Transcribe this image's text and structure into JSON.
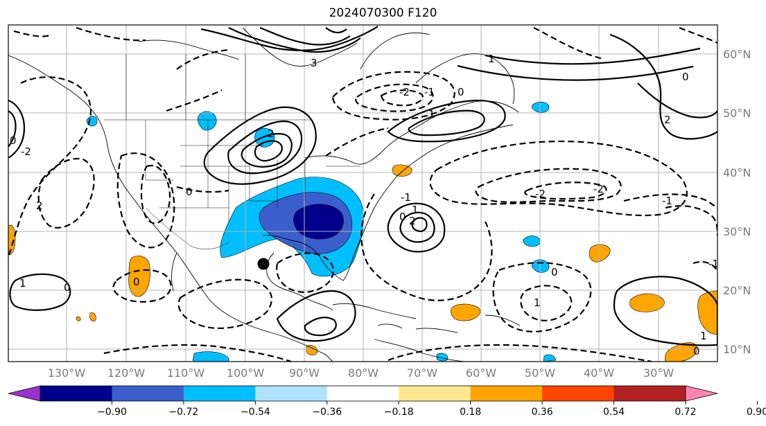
{
  "title": "2024070300 F120",
  "map": {
    "lat_labels": [
      "60°N",
      "50°N",
      "40°N",
      "30°N",
      "20°N",
      "10°N"
    ],
    "lon_labels": [
      "130°W",
      "120°W",
      "110°W",
      "100°W",
      "90°W",
      "80°W",
      "70°W",
      "60°W",
      "50°W",
      "40°W",
      "30°W"
    ],
    "contour_labels": [
      "3",
      "2",
      "1",
      "0",
      "-1",
      "-2",
      "2",
      "1",
      "0",
      "-1",
      "-2",
      "0",
      "1",
      "-1",
      "0",
      "2",
      "-2",
      "0",
      "1",
      "-1",
      "0",
      "1",
      "2",
      "0",
      "-2",
      "0",
      "1",
      "0"
    ]
  },
  "colorbar": {
    "tick_labels": [
      "−0.90",
      "−0.72",
      "−0.54",
      "−0.36",
      "−0.18",
      "0.18",
      "0.36",
      "0.54",
      "0.72",
      "0.90"
    ],
    "colors": [
      "#9932cc",
      "#00008b",
      "#3a5fcd",
      "#00bfff",
      "#b0e2ff",
      "#ffffff",
      "#ffe890",
      "#ffa500",
      "#ff4500",
      "#b22222",
      "#ff85b0"
    ]
  }
}
